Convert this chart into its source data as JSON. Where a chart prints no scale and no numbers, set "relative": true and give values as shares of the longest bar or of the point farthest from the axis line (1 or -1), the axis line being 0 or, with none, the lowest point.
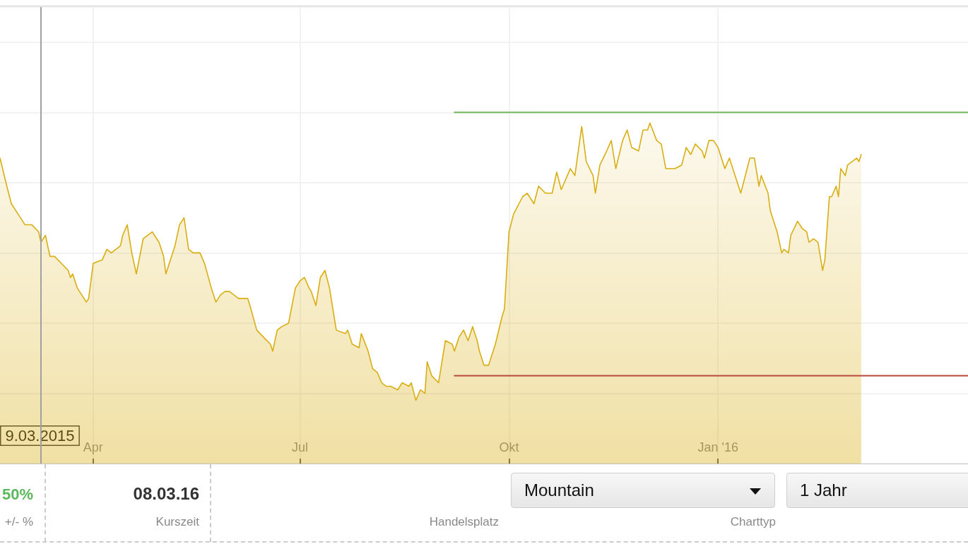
{
  "chart_data": {
    "type": "area",
    "relative": true,
    "grid": true,
    "xlim": [
      "2015-02-19",
      "2016-04-20"
    ],
    "xticks": [
      {
        "value": "2015-04-01",
        "label": "Apr"
      },
      {
        "value": "2015-07-01",
        "label": "Jul"
      },
      {
        "value": "2015-10-01",
        "label": "Okt"
      },
      {
        "value": "2016-01-01",
        "label": "Jan '16"
      }
    ],
    "series": [
      {
        "color": "#d9ae12",
        "x": [
          "2015-02-19",
          "2015-02-22",
          "2015-02-24",
          "2015-02-27",
          "2015-03-02",
          "2015-03-05",
          "2015-03-08",
          "2015-03-09",
          "2015-03-11",
          "2015-03-13",
          "2015-03-15",
          "2015-03-18",
          "2015-03-21",
          "2015-03-22",
          "2015-03-23",
          "2015-03-25",
          "2015-03-27",
          "2015-03-29",
          "2015-03-30",
          "2015-04-01",
          "2015-04-05",
          "2015-04-07",
          "2015-04-09",
          "2015-04-13",
          "2015-04-14",
          "2015-04-16",
          "2015-04-18",
          "2015-04-20",
          "2015-04-23",
          "2015-04-27",
          "2015-04-30",
          "2015-05-02",
          "2015-05-03",
          "2015-05-07",
          "2015-05-09",
          "2015-05-11",
          "2015-05-13",
          "2015-05-15",
          "2015-05-18",
          "2015-05-20",
          "2015-05-23",
          "2015-05-25",
          "2015-05-27",
          "2015-05-29",
          "2015-05-31",
          "2015-06-04",
          "2015-06-08",
          "2015-06-09",
          "2015-06-12",
          "2015-06-15",
          "2015-06-18",
          "2015-06-19",
          "2015-06-21",
          "2015-06-23",
          "2015-06-26",
          "2015-06-29",
          "2015-07-01",
          "2015-07-03",
          "2015-07-05",
          "2015-07-06",
          "2015-07-08",
          "2015-07-10",
          "2015-07-12",
          "2015-07-14",
          "2015-07-17",
          "2015-07-21",
          "2015-07-22",
          "2015-07-24",
          "2015-07-27",
          "2015-07-28",
          "2015-07-31",
          "2015-08-02",
          "2015-08-04",
          "2015-08-06",
          "2015-08-08",
          "2015-08-10",
          "2015-08-13",
          "2015-08-15",
          "2015-08-18",
          "2015-08-19",
          "2015-08-21",
          "2015-08-23",
          "2015-08-25",
          "2015-08-26",
          "2015-08-28",
          "2015-08-31",
          "2015-09-03",
          "2015-09-06",
          "2015-09-07",
          "2015-09-09",
          "2015-09-11",
          "2015-09-13",
          "2015-09-15",
          "2015-09-17",
          "2015-09-18",
          "2015-09-20",
          "2015-09-22",
          "2015-09-25",
          "2015-09-28",
          "2015-09-29",
          "2015-10-01",
          "2015-10-03",
          "2015-10-07",
          "2015-10-09",
          "2015-10-12",
          "2015-10-14",
          "2015-10-17",
          "2015-10-20",
          "2015-10-22",
          "2015-10-24",
          "2015-10-28",
          "2015-10-30",
          "2015-11-02",
          "2015-11-04",
          "2015-11-07",
          "2015-11-08",
          "2015-11-10",
          "2015-11-13",
          "2015-11-15",
          "2015-11-17",
          "2015-11-20",
          "2015-11-22",
          "2015-11-24",
          "2015-11-27",
          "2015-11-29",
          "2015-12-01",
          "2015-12-02",
          "2015-12-05",
          "2015-12-07",
          "2015-12-09",
          "2015-12-13",
          "2015-12-16",
          "2015-12-18",
          "2015-12-20",
          "2015-12-22",
          "2015-12-25",
          "2015-12-26",
          "2015-12-28",
          "2015-12-30",
          "2016-01-01",
          "2016-01-04",
          "2016-01-06",
          "2016-01-11",
          "2016-01-15",
          "2016-01-17",
          "2016-01-19",
          "2016-01-20",
          "2016-01-23",
          "2016-01-24",
          "2016-01-27",
          "2016-01-29",
          "2016-01-30",
          "2016-02-01",
          "2016-02-02",
          "2016-02-05",
          "2016-02-07",
          "2016-02-09",
          "2016-02-10",
          "2016-02-12",
          "2016-02-14",
          "2016-02-16",
          "2016-02-17",
          "2016-02-19",
          "2016-02-20",
          "2016-02-22",
          "2016-02-23",
          "2016-02-24",
          "2016-02-26",
          "2016-02-27",
          "2016-03-02",
          "2016-03-03",
          "2016-03-04"
        ],
        "values": [
          0.87,
          0.79,
          0.74,
          0.71,
          0.68,
          0.68,
          0.66,
          0.63,
          0.65,
          0.59,
          0.59,
          0.57,
          0.55,
          0.53,
          0.54,
          0.5,
          0.48,
          0.46,
          0.47,
          0.57,
          0.58,
          0.61,
          0.6,
          0.62,
          0.65,
          0.68,
          0.6,
          0.54,
          0.64,
          0.66,
          0.63,
          0.59,
          0.54,
          0.62,
          0.68,
          0.7,
          0.61,
          0.6,
          0.6,
          0.57,
          0.5,
          0.46,
          0.48,
          0.49,
          0.49,
          0.47,
          0.47,
          0.45,
          0.38,
          0.36,
          0.34,
          0.32,
          0.38,
          0.39,
          0.4,
          0.5,
          0.52,
          0.53,
          0.5,
          0.49,
          0.45,
          0.53,
          0.55,
          0.5,
          0.38,
          0.37,
          0.38,
          0.34,
          0.33,
          0.37,
          0.32,
          0.27,
          0.26,
          0.23,
          0.22,
          0.22,
          0.21,
          0.23,
          0.22,
          0.23,
          0.18,
          0.21,
          0.2,
          0.29,
          0.25,
          0.23,
          0.35,
          0.34,
          0.32,
          0.36,
          0.38,
          0.35,
          0.39,
          0.35,
          0.32,
          0.28,
          0.28,
          0.34,
          0.42,
          0.44,
          0.66,
          0.71,
          0.76,
          0.77,
          0.74,
          0.79,
          0.77,
          0.77,
          0.83,
          0.78,
          0.84,
          0.82,
          0.96,
          0.86,
          0.82,
          0.77,
          0.85,
          0.89,
          0.92,
          0.84,
          0.92,
          0.95,
          0.9,
          0.89,
          0.95,
          0.95,
          0.97,
          0.92,
          0.91,
          0.84,
          0.84,
          0.85,
          0.9,
          0.88,
          0.91,
          0.89,
          0.87,
          0.92,
          0.92,
          0.9,
          0.84,
          0.87,
          0.77,
          0.87,
          0.87,
          0.79,
          0.82,
          0.77,
          0.72,
          0.66,
          0.6,
          0.61,
          0.6,
          0.65,
          0.69,
          0.67,
          0.66,
          0.63,
          0.64,
          0.63,
          0.55,
          0.58,
          0.76,
          0.76,
          0.79,
          0.76,
          0.84,
          0.82,
          0.85,
          0.87,
          0.86,
          0.88
        ]
      },
      {
        "type": "line",
        "color": "#72b85a",
        "x": [
          "2015-09-07",
          "2016-04-20"
        ],
        "values": [
          1,
          1
        ]
      },
      {
        "type": "line",
        "color": "#b8483e",
        "x": [
          "2015-09-07",
          "2016-04-20"
        ],
        "values": [
          0.25,
          0.25
        ]
      }
    ],
    "ref_lines": [
      {
        "axis": "x",
        "value": "2015-03-09",
        "label": "9.03.2015",
        "color": "#a0a0a0"
      }
    ],
    "annotations": [
      "50%",
      "+/- %",
      "08.03.16",
      "Kurszeit",
      "Handelsplatz",
      "Mountain",
      "Charttyp",
      "1 Jahr"
    ]
  }
}
